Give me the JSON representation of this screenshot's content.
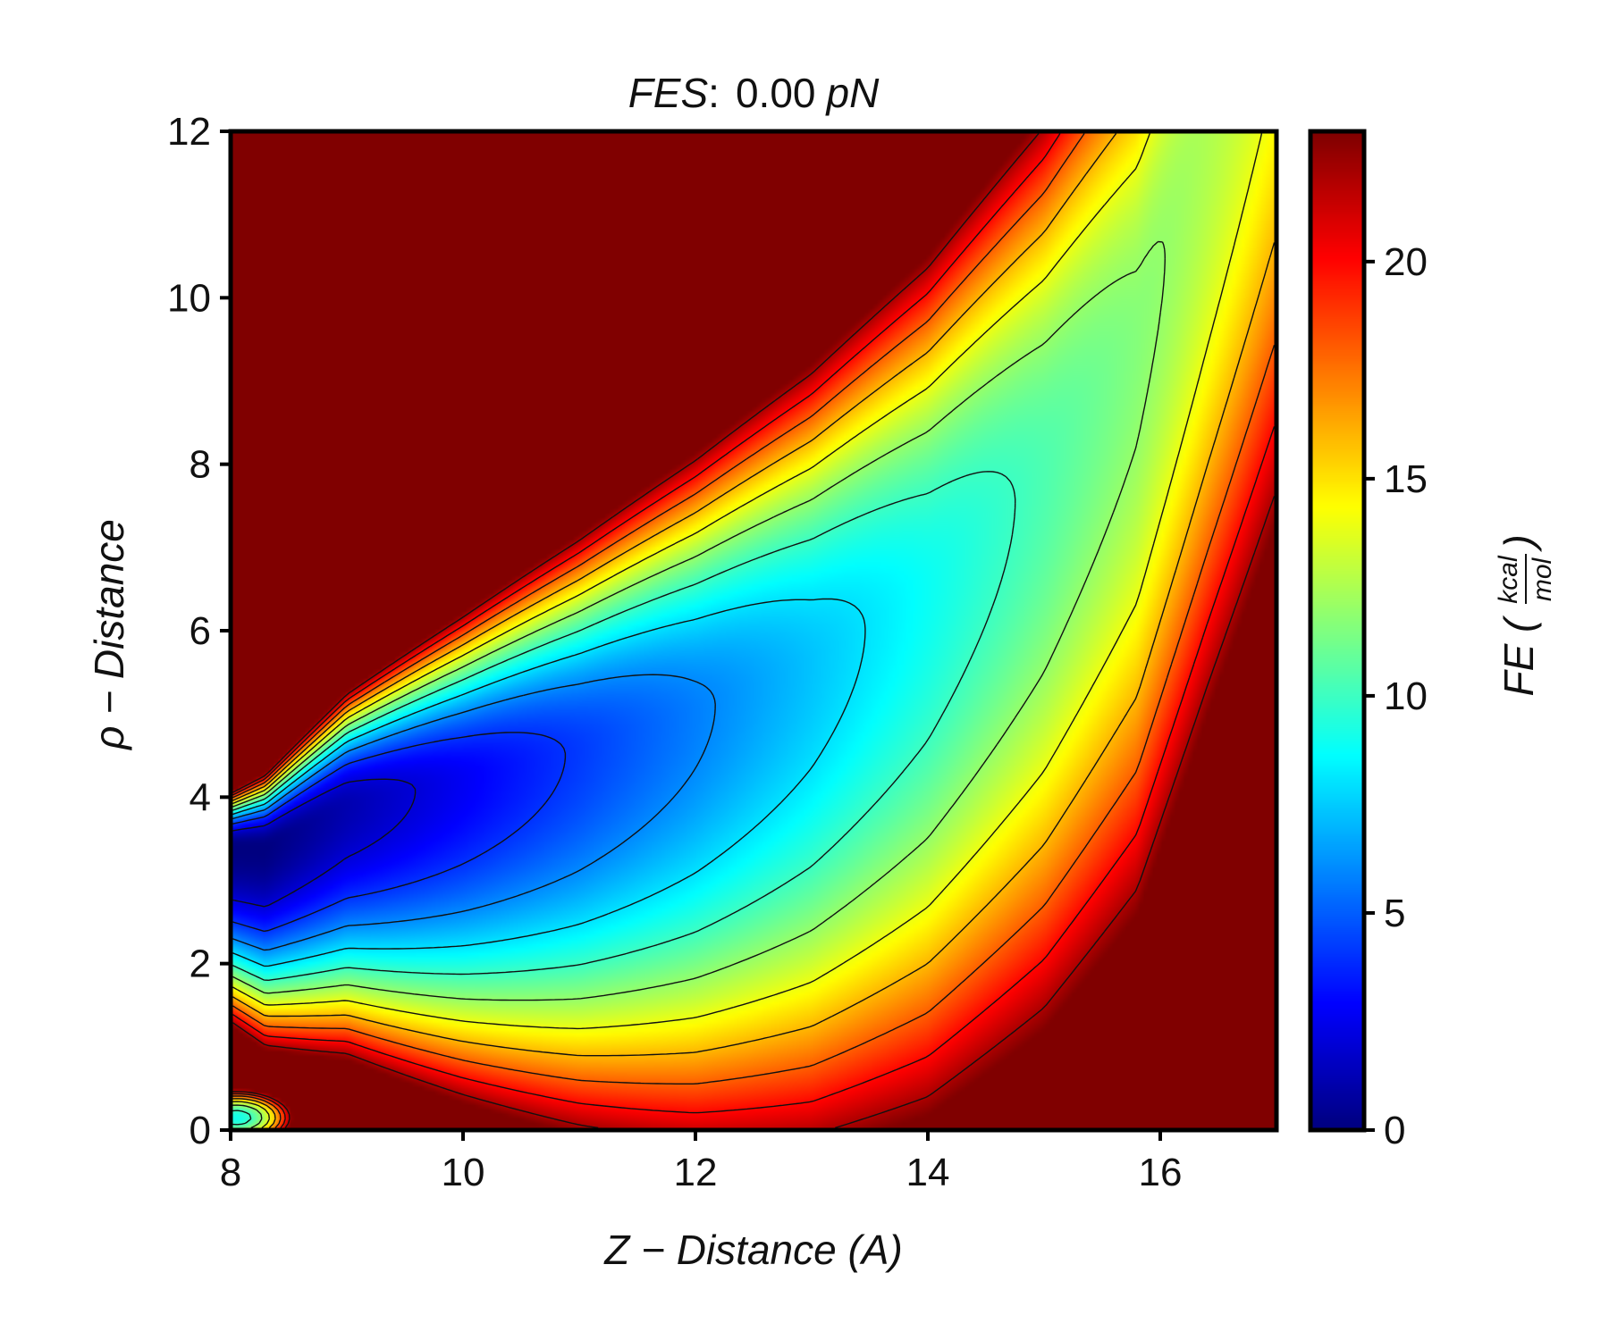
{
  "chart_data": {
    "type": "heatmap",
    "title_prefix": "FES",
    "title_colon": ":",
    "title_value": "0.00",
    "title_unit": "pN",
    "xlabel": "Z − Distance (A)",
    "ylabel": "ρ − Distance",
    "xlim": [
      8,
      17
    ],
    "ylim": [
      0,
      12
    ],
    "x_ticks": [
      8,
      10,
      12,
      14,
      16
    ],
    "y_ticks": [
      0,
      2,
      4,
      6,
      8,
      10,
      12
    ],
    "colorbar": {
      "label_main": "FE (",
      "label_num": "kcal",
      "label_den": "mol",
      "label_close": ")",
      "range": [
        0,
        23
      ],
      "ticks": [
        0,
        5,
        10,
        15,
        20
      ],
      "colormap": "jet"
    },
    "contour_levels": [
      2,
      4,
      6,
      8,
      10,
      12,
      14,
      16,
      18,
      20,
      22
    ],
    "minimum": {
      "z": 8.3,
      "rho": 3.4,
      "fe": 0
    },
    "channel_centerline": [
      [
        8.3,
        3.4
      ],
      [
        9.0,
        3.9
      ],
      [
        10.0,
        4.2
      ],
      [
        11.0,
        4.55
      ],
      [
        12.0,
        5.0
      ],
      [
        13.0,
        5.6
      ],
      [
        14.0,
        6.5
      ],
      [
        15.0,
        7.9
      ],
      [
        15.8,
        9.5
      ],
      [
        16.4,
        12.0
      ]
    ],
    "lower_lobe": {
      "z": 8.05,
      "rho": 0.15,
      "fe": 9
    }
  }
}
